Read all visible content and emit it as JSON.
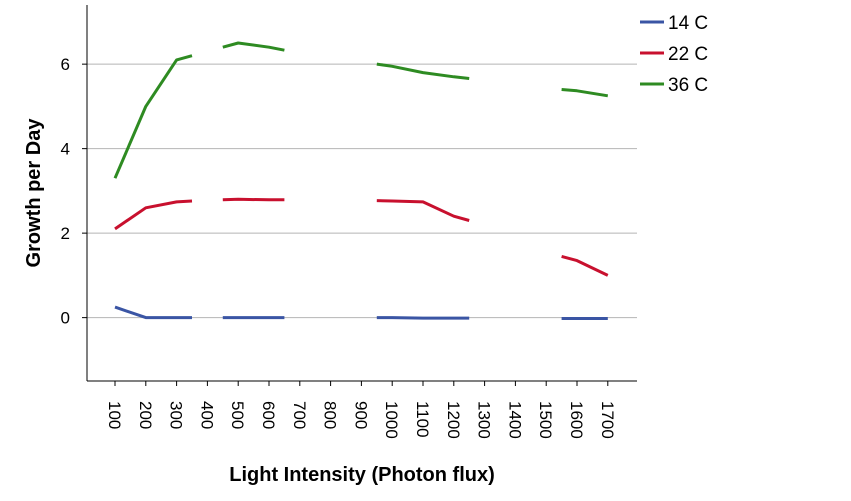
{
  "chart_data": {
    "type": "line",
    "title": "",
    "xlabel": "Light Intensity (Photon flux)",
    "ylabel": "Growth per Day",
    "x": [
      100,
      200,
      300,
      400,
      500,
      600,
      700,
      800,
      900,
      1000,
      1100,
      1200,
      1300,
      1400,
      1500,
      1600,
      1700
    ],
    "x_tick_labels": [
      "100",
      "200",
      "300",
      "400",
      "500",
      "600",
      "700",
      "800",
      "900",
      "1000",
      "1100",
      "1200",
      "1300",
      "1400",
      "1500",
      "1600",
      "1700"
    ],
    "ylim": [
      -1.5,
      7.4
    ],
    "y_ticks": [
      0,
      2,
      4,
      6
    ],
    "y_tick_labels": [
      "0",
      "2",
      "4",
      "6"
    ],
    "grid": "horizontal",
    "legend_position": "top-right",
    "series": [
      {
        "name": "14 C",
        "color": "#3a55a4",
        "points": [
          [
            100,
            0.25
          ],
          [
            200,
            0.0
          ],
          [
            300,
            0.0
          ],
          [
            350,
            0.0
          ],
          [
            450,
            0.0
          ],
          [
            500,
            0.0
          ],
          [
            600,
            0.0
          ],
          [
            650,
            0.0
          ],
          [
            950,
            0.0
          ],
          [
            1000,
            0.0
          ],
          [
            1100,
            -0.01
          ],
          [
            1200,
            -0.01
          ],
          [
            1250,
            -0.01
          ],
          [
            1550,
            -0.02
          ],
          [
            1600,
            -0.02
          ],
          [
            1700,
            -0.02
          ]
        ],
        "breaks_after": [
          350,
          650,
          1250
        ]
      },
      {
        "name": "22 C",
        "color": "#c8102e",
        "points": [
          [
            100,
            2.1
          ],
          [
            200,
            2.6
          ],
          [
            300,
            2.74
          ],
          [
            350,
            2.76
          ],
          [
            450,
            2.79
          ],
          [
            500,
            2.8
          ],
          [
            600,
            2.79
          ],
          [
            650,
            2.79
          ],
          [
            950,
            2.77
          ],
          [
            1000,
            2.76
          ],
          [
            1100,
            2.74
          ],
          [
            1200,
            2.4
          ],
          [
            1250,
            2.3
          ],
          [
            1550,
            1.45
          ],
          [
            1600,
            1.35
          ],
          [
            1700,
            1.0
          ]
        ],
        "breaks_after": [
          350,
          650,
          1250
        ]
      },
      {
        "name": "36 C",
        "color": "#2e8b22",
        "points": [
          [
            100,
            3.3
          ],
          [
            200,
            5.0
          ],
          [
            300,
            6.1
          ],
          [
            350,
            6.2
          ],
          [
            450,
            6.4
          ],
          [
            500,
            6.5
          ],
          [
            600,
            6.4
          ],
          [
            650,
            6.33
          ],
          [
            950,
            6.0
          ],
          [
            1000,
            5.95
          ],
          [
            1100,
            5.8
          ],
          [
            1200,
            5.7
          ],
          [
            1250,
            5.66
          ],
          [
            1550,
            5.4
          ],
          [
            1600,
            5.37
          ],
          [
            1700,
            5.25
          ]
        ],
        "breaks_after": [
          350,
          650,
          1250
        ]
      }
    ]
  }
}
